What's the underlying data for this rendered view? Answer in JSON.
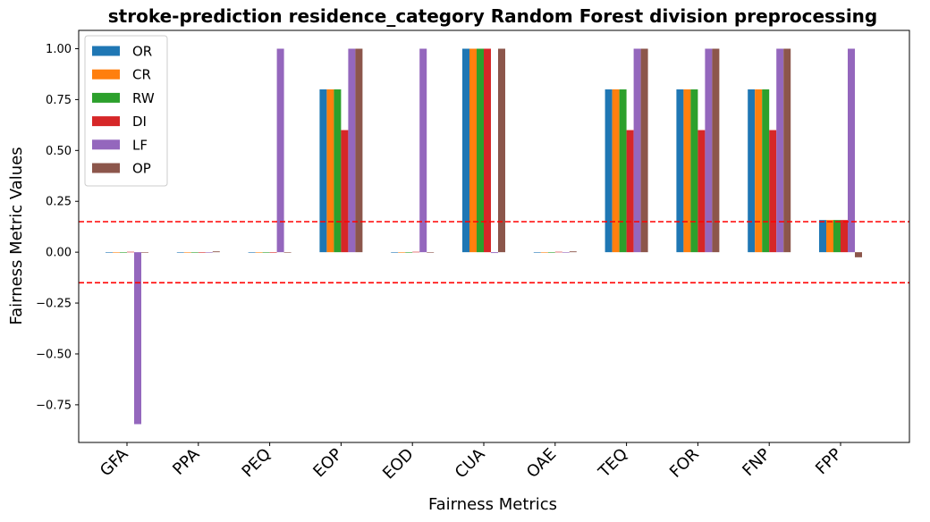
{
  "chart_data": {
    "type": "bar",
    "title": "stroke-prediction residence_category Random Forest division preprocessing",
    "xlabel": "Fairness Metrics",
    "ylabel": "Fairness Metric Values",
    "ylim": [
      -0.935,
      1.09
    ],
    "yticks": [
      -0.75,
      -0.5,
      -0.25,
      0.0,
      0.25,
      0.5,
      0.75,
      1.0
    ],
    "ytick_labels": [
      "−0.75",
      "−0.50",
      "−0.25",
      "0.00",
      "0.25",
      "0.50",
      "0.75",
      "1.00"
    ],
    "categories": [
      "GFA",
      "PPA",
      "PEQ",
      "EOP",
      "EOD",
      "CUA",
      "OAE",
      "TEQ",
      "FOR",
      "FNP",
      "FPP"
    ],
    "series": [
      {
        "name": "OR",
        "color": "#1f77b4",
        "values": [
          0,
          0,
          0,
          0.8,
          0,
          1.0,
          0,
          0.8,
          0.8,
          0.8,
          0.158
        ]
      },
      {
        "name": "CR",
        "color": "#ff7f0e",
        "values": [
          0,
          0,
          0,
          0.8,
          0,
          1.0,
          0,
          0.8,
          0.8,
          0.8,
          0.158
        ]
      },
      {
        "name": "RW",
        "color": "#2ca02c",
        "values": [
          0,
          0,
          0,
          0.8,
          0,
          1.0,
          0,
          0.8,
          0.8,
          0.8,
          0.158
        ]
      },
      {
        "name": "DI",
        "color": "#d62728",
        "values": [
          0.002,
          -0.002,
          0,
          0.6,
          0.002,
          1.0,
          0.002,
          0.6,
          0.6,
          0.6,
          0.158
        ]
      },
      {
        "name": "LF",
        "color": "#9467bd",
        "values": [
          -0.845,
          0,
          1.0,
          1.0,
          1.0,
          -0.004,
          0,
          1.0,
          1.0,
          1.0,
          1.0
        ]
      },
      {
        "name": "OP",
        "color": "#8c564b",
        "values": [
          0,
          0.004,
          0,
          1.0,
          0,
          1.0,
          0.004,
          1.0,
          1.0,
          1.0,
          -0.025
        ]
      }
    ],
    "reference_lines": [
      0.15,
      -0.15
    ],
    "reference_line_color": "#ff0000",
    "grid": false,
    "legend_position": "top-left"
  }
}
